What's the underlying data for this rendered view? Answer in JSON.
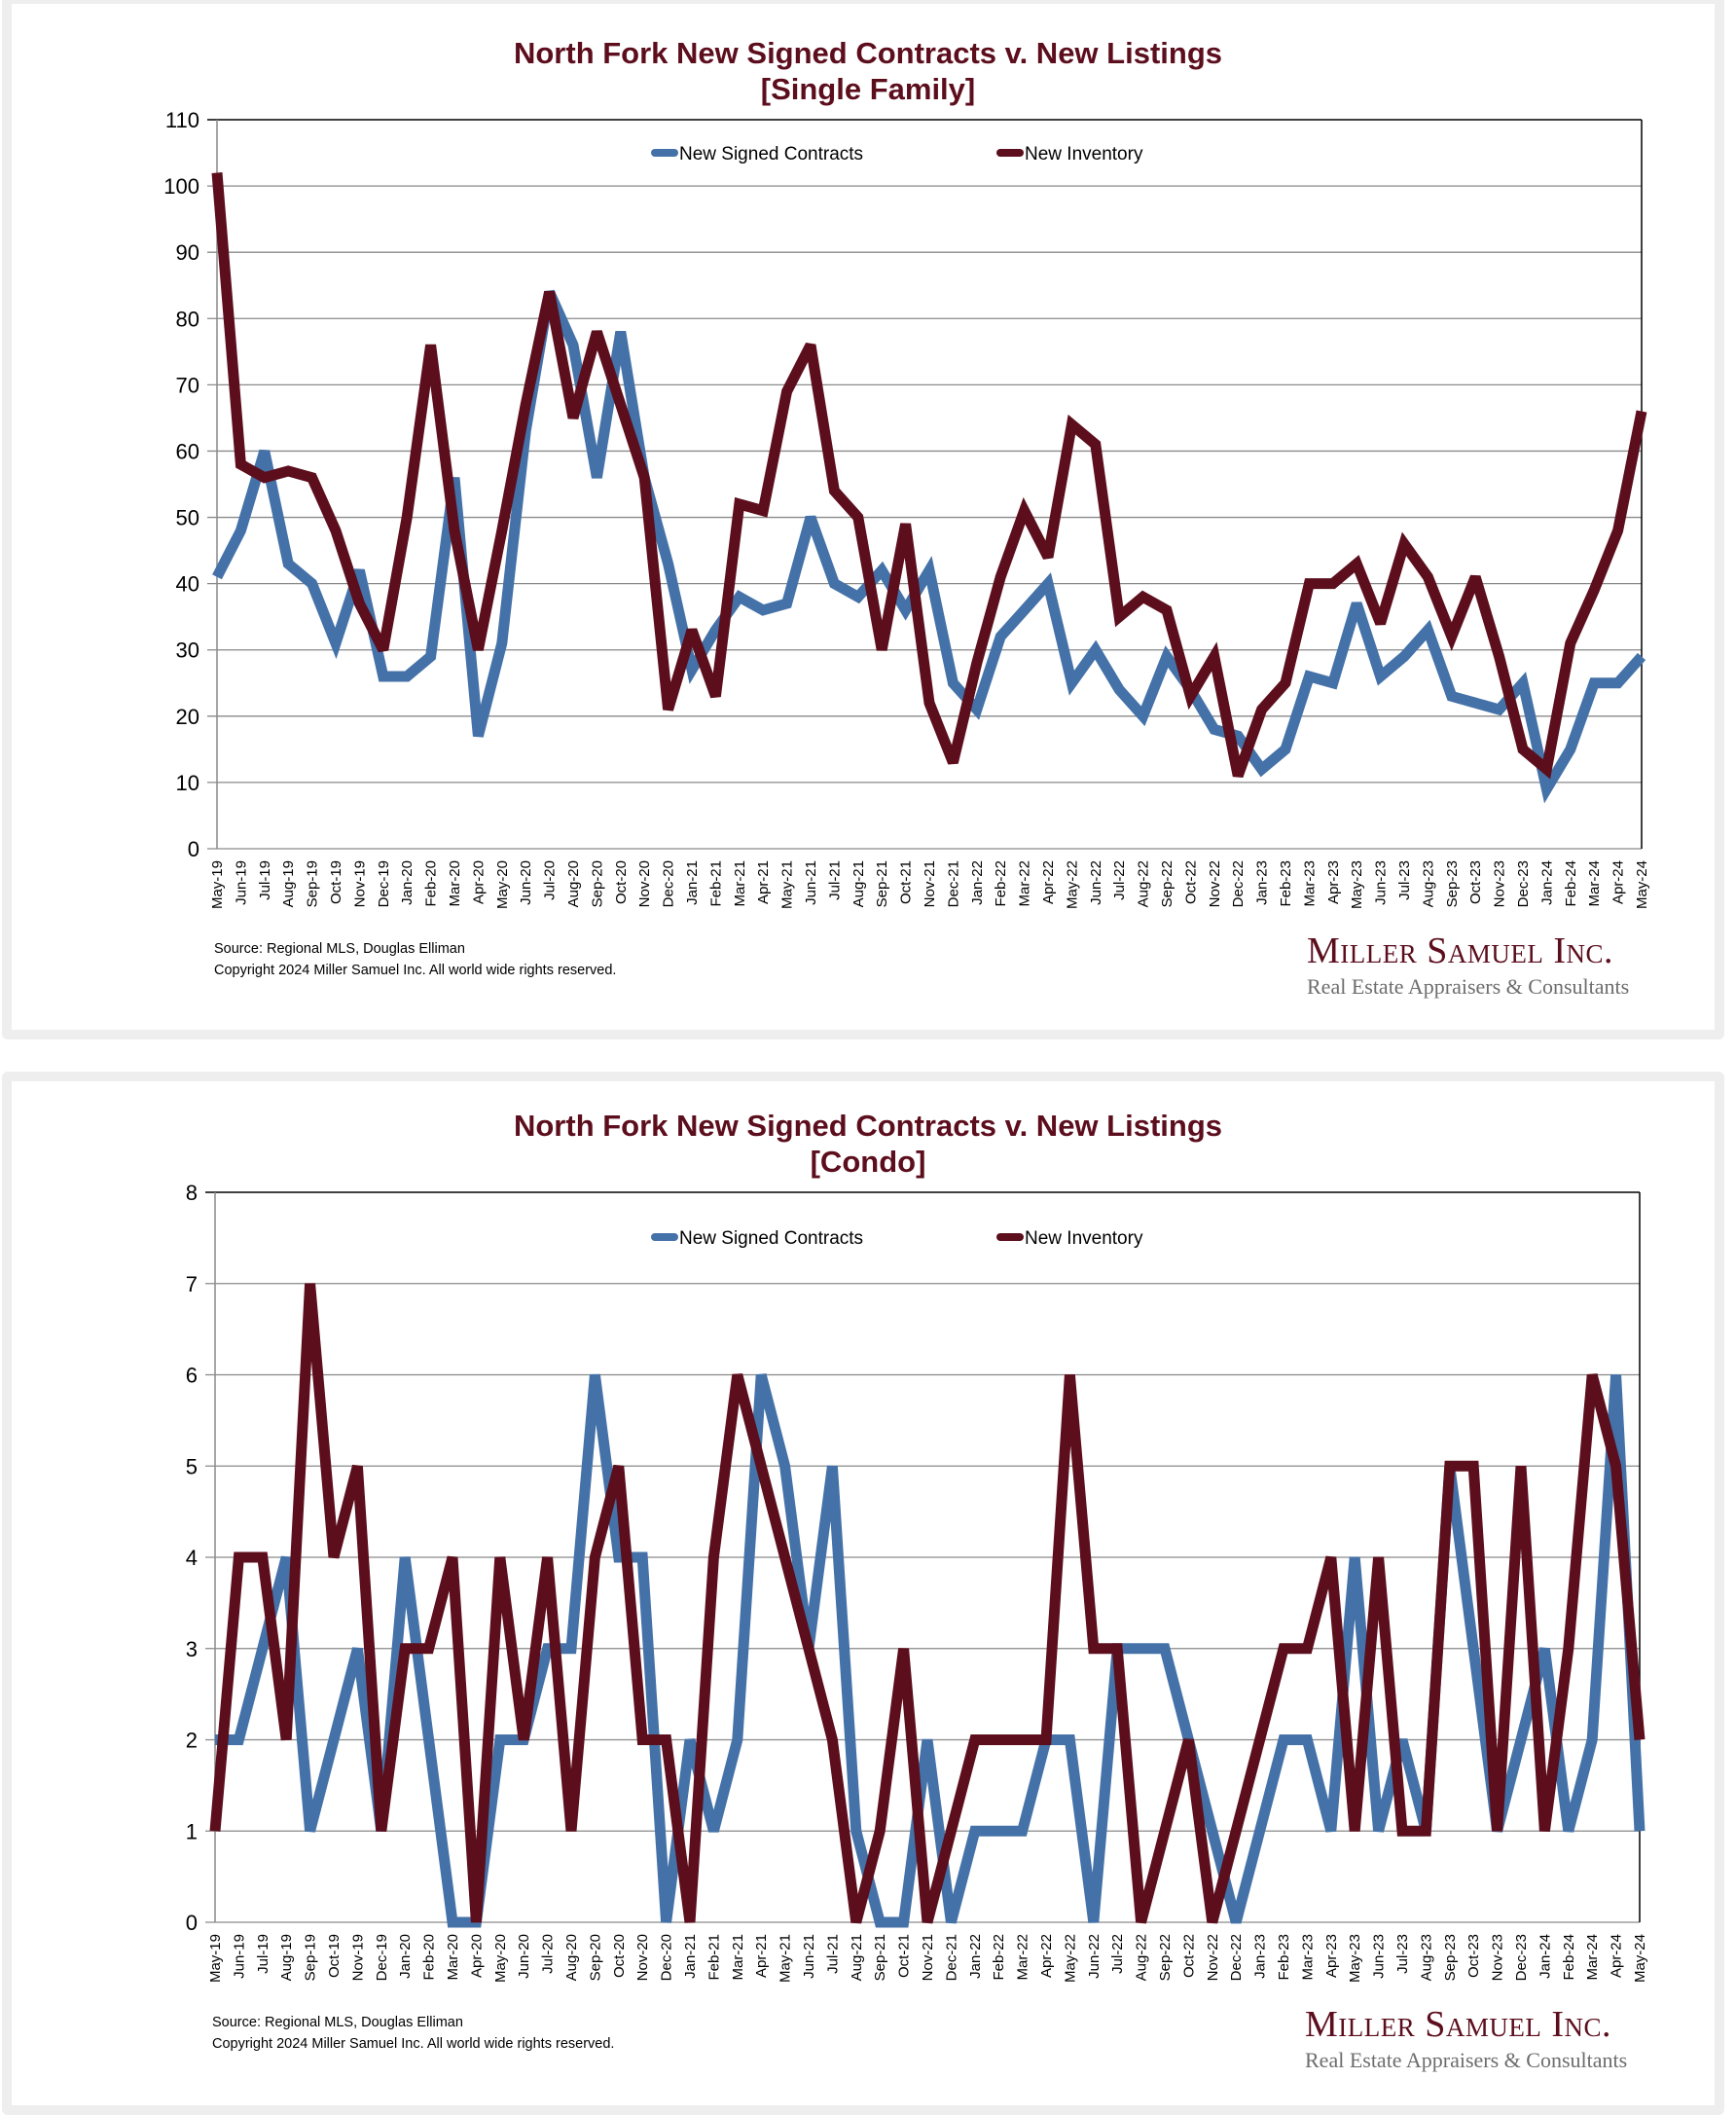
{
  "colors": {
    "signed": "#4472a8",
    "inventory": "#5c0e1d",
    "title": "#5c0e1d",
    "grid": "#8a8a8a",
    "frame": "#eeeeee"
  },
  "footer": {
    "source": "Source: Regional MLS, Douglas Elliman",
    "copyright": "Copyright 2024 Miller Samuel Inc.  All world wide rights reserved.",
    "logo_name": "Miller Samuel Inc.",
    "logo_tagline": "Real Estate Appraisers & Consultants"
  },
  "chart_data": [
    {
      "type": "line",
      "title": "North Fork New Signed Contracts v. New Listings",
      "subtitle": "[Single Family]",
      "xlabel": "",
      "ylabel": "",
      "ylim": [
        0,
        110
      ],
      "yticks": [
        0,
        10,
        20,
        30,
        40,
        50,
        60,
        70,
        80,
        90,
        100,
        110
      ],
      "grid": true,
      "legend_position": "top-center",
      "categories": [
        "May-19",
        "Jun-19",
        "Jul-19",
        "Aug-19",
        "Sep-19",
        "Oct-19",
        "Nov-19",
        "Dec-19",
        "Jan-20",
        "Feb-20",
        "Mar-20",
        "Apr-20",
        "May-20",
        "Jun-20",
        "Jul-20",
        "Aug-20",
        "Sep-20",
        "Oct-20",
        "Nov-20",
        "Dec-20",
        "Jan-21",
        "Feb-21",
        "Mar-21",
        "Apr-21",
        "May-21",
        "Jun-21",
        "Jul-21",
        "Aug-21",
        "Sep-21",
        "Oct-21",
        "Nov-21",
        "Dec-21",
        "Jan-22",
        "Feb-22",
        "Mar-22",
        "Apr-22",
        "May-22",
        "Jun-22",
        "Jul-22",
        "Aug-22",
        "Sep-22",
        "Oct-22",
        "Nov-22",
        "Dec-22",
        "Jan-23",
        "Feb-23",
        "Mar-23",
        "Apr-23",
        "May-23",
        "Jun-23",
        "Jul-23",
        "Aug-23",
        "Sep-23",
        "Oct-23",
        "Nov-23",
        "Dec-23",
        "Jan-24",
        "Feb-24",
        "Mar-24",
        "Apr-24",
        "May-24"
      ],
      "series": [
        {
          "name": "New Signed Contracts",
          "color": "#4472a8",
          "values": [
            41,
            48,
            60,
            43,
            40,
            31,
            42,
            26,
            26,
            29,
            56,
            17,
            31,
            63,
            84,
            76,
            56,
            78,
            56,
            43,
            27,
            33,
            38,
            36,
            37,
            50,
            40,
            38,
            42,
            36,
            42,
            25,
            21,
            32,
            36,
            40,
            25,
            30,
            24,
            20,
            29,
            24,
            18,
            17,
            12,
            15,
            26,
            25,
            37,
            26,
            29,
            33,
            23,
            22,
            21,
            25,
            9,
            15,
            25,
            25,
            29
          ]
        },
        {
          "name": "New Inventory",
          "color": "#5c0e1d",
          "values": [
            102,
            58,
            56,
            57,
            56,
            48,
            37,
            30,
            50,
            76,
            48,
            30,
            48,
            67,
            84,
            65,
            78,
            67,
            56,
            21,
            33,
            23,
            52,
            51,
            69,
            76,
            54,
            50,
            30,
            49,
            22,
            13,
            28,
            41,
            51,
            44,
            64,
            61,
            35,
            38,
            36,
            23,
            29,
            11,
            21,
            25,
            40,
            40,
            43,
            34,
            46,
            41,
            32,
            41,
            29,
            15,
            12,
            31,
            39,
            48,
            66
          ]
        }
      ]
    },
    {
      "type": "line",
      "title": "North Fork New Signed Contracts v. New Listings",
      "subtitle": "[Condo]",
      "xlabel": "",
      "ylabel": "",
      "ylim": [
        0,
        8
      ],
      "yticks": [
        0,
        1,
        2,
        3,
        4,
        5,
        6,
        7,
        8
      ],
      "grid": true,
      "legend_position": "top-center",
      "categories": [
        "May-19",
        "Jun-19",
        "Jul-19",
        "Aug-19",
        "Sep-19",
        "Oct-19",
        "Nov-19",
        "Dec-19",
        "Jan-20",
        "Feb-20",
        "Mar-20",
        "Apr-20",
        "May-20",
        "Jun-20",
        "Jul-20",
        "Aug-20",
        "Sep-20",
        "Oct-20",
        "Nov-20",
        "Dec-20",
        "Jan-21",
        "Feb-21",
        "Mar-21",
        "Apr-21",
        "May-21",
        "Jun-21",
        "Jul-21",
        "Aug-21",
        "Sep-21",
        "Oct-21",
        "Nov-21",
        "Dec-21",
        "Jan-22",
        "Feb-22",
        "Mar-22",
        "Apr-22",
        "May-22",
        "Jun-22",
        "Jul-22",
        "Aug-22",
        "Sep-22",
        "Oct-22",
        "Nov-22",
        "Dec-22",
        "Jan-23",
        "Feb-23",
        "Mar-23",
        "Apr-23",
        "May-23",
        "Jun-23",
        "Jul-23",
        "Aug-23",
        "Sep-23",
        "Oct-23",
        "Nov-23",
        "Dec-23",
        "Jan-24",
        "Feb-24",
        "Mar-24",
        "Apr-24",
        "May-24"
      ],
      "series": [
        {
          "name": "New Signed Contracts",
          "color": "#4472a8",
          "values": [
            2,
            2,
            3,
            4,
            1,
            2,
            3,
            1,
            4,
            2,
            0,
            0,
            2,
            2,
            3,
            3,
            6,
            4,
            4,
            0,
            2,
            1,
            2,
            6,
            5,
            3,
            5,
            1,
            0,
            0,
            2,
            0,
            1,
            1,
            1,
            2,
            2,
            0,
            3,
            3,
            3,
            2,
            1,
            0,
            1,
            2,
            2,
            1,
            4,
            1,
            2,
            1,
            5,
            3,
            1,
            2,
            3,
            1,
            2,
            6,
            1
          ]
        },
        {
          "name": "New Inventory",
          "color": "#5c0e1d",
          "values": [
            1,
            4,
            4,
            2,
            7,
            4,
            5,
            1,
            3,
            3,
            4,
            0,
            4,
            2,
            4,
            1,
            4,
            5,
            2,
            2,
            0,
            4,
            6,
            5,
            4,
            3,
            2,
            0,
            1,
            3,
            0,
            1,
            2,
            2,
            2,
            2,
            6,
            3,
            3,
            0,
            1,
            2,
            0,
            1,
            2,
            3,
            3,
            4,
            1,
            4,
            1,
            1,
            5,
            5,
            1,
            5,
            1,
            3,
            6,
            5,
            2
          ]
        }
      ]
    }
  ]
}
